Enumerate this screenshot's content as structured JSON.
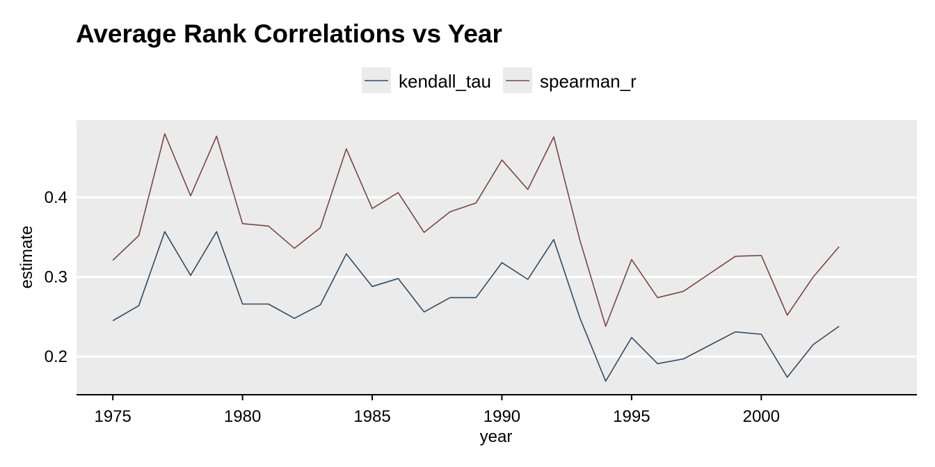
{
  "chart_data": {
    "type": "line",
    "title": "Average Rank Correlations vs Year",
    "xlabel": "year",
    "ylabel": "estimate",
    "xlim": [
      1973.6,
      2006.0
    ],
    "ylim": [
      0.152,
      0.497
    ],
    "xticks": [
      1975,
      1980,
      1985,
      1990,
      1995,
      2000
    ],
    "yticks": [
      0.2,
      0.3,
      0.4
    ],
    "grid": true,
    "legend_position": "top",
    "background_color": "#ebebeb",
    "x": [
      1975,
      1976,
      1977,
      1978,
      1979,
      1980,
      1981,
      1982,
      1983,
      1984,
      1985,
      1986,
      1987,
      1988,
      1989,
      1990,
      1991,
      1992,
      1993,
      1994,
      1995,
      1996,
      1997,
      1998,
      1999,
      2000,
      2001,
      2002,
      2003
    ],
    "series": [
      {
        "name": "kendall_tau",
        "color": "#2f4b66",
        "values": [
          0.245,
          0.264,
          0.357,
          0.302,
          0.357,
          0.266,
          0.266,
          0.248,
          0.265,
          0.329,
          0.288,
          0.298,
          0.256,
          0.274,
          0.274,
          0.318,
          0.297,
          0.347,
          0.249,
          0.169,
          0.224,
          0.191,
          0.197,
          0.214,
          0.231,
          0.228,
          0.174,
          0.215,
          0.238
        ]
      },
      {
        "name": "spearman_r",
        "color": "#7a4640",
        "values": [
          0.321,
          0.352,
          0.48,
          0.402,
          0.477,
          0.367,
          0.364,
          0.336,
          0.362,
          0.461,
          0.386,
          0.406,
          0.356,
          0.382,
          0.393,
          0.447,
          0.41,
          0.476,
          0.347,
          0.238,
          0.322,
          0.274,
          0.282,
          0.304,
          0.326,
          0.327,
          0.252,
          0.3,
          0.338
        ]
      }
    ]
  }
}
